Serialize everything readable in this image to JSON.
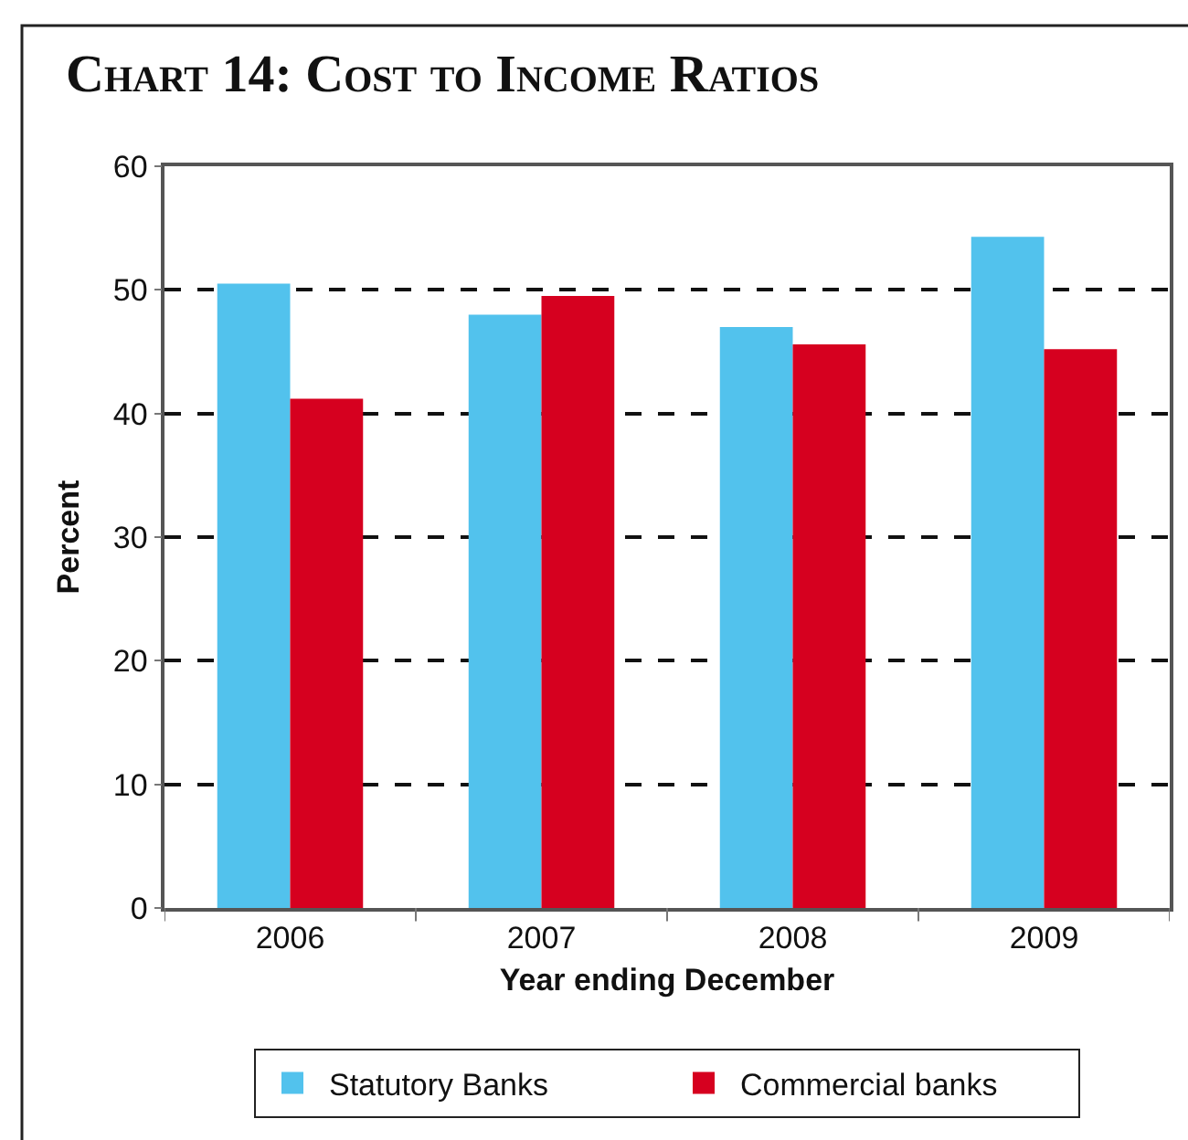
{
  "chart_data": {
    "type": "bar",
    "title": "Chart 14: Cost to Income Ratios",
    "xlabel": "Year ending December",
    "ylabel": "Percent",
    "categories": [
      "2006",
      "2007",
      "2008",
      "2009"
    ],
    "series": [
      {
        "name": "Statutory Banks",
        "color": "#52c2ed",
        "values": [
          50.5,
          48.0,
          47.0,
          54.3
        ]
      },
      {
        "name": "Commercial banks",
        "color": "#d6001f",
        "values": [
          41.2,
          49.5,
          45.6,
          45.2
        ]
      }
    ],
    "ylim": [
      0,
      60
    ],
    "yticks": [
      0,
      10,
      20,
      30,
      40,
      50,
      60
    ],
    "grid": "y",
    "legend": "bottom"
  }
}
